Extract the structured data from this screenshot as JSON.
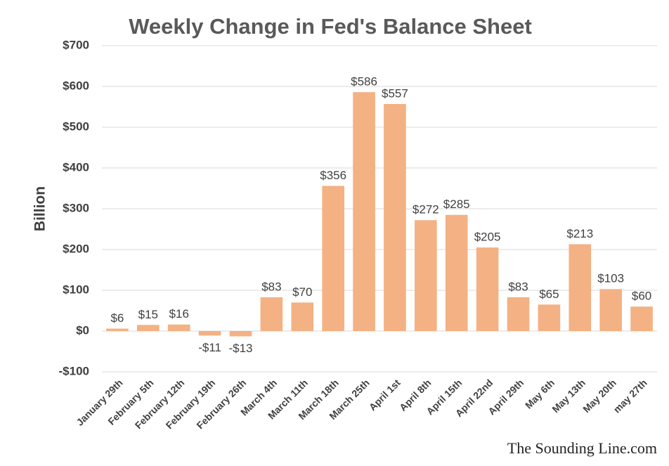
{
  "chart_data": {
    "type": "bar",
    "title": "Weekly Change in Fed's Balance Sheet",
    "y_label": "Billion",
    "annotation": "The Sounding Line.com",
    "categories": [
      "January 29th",
      "February 5th",
      "February 12th",
      "February 19th",
      "February 26th",
      "March 4th",
      "March 11th",
      "March 18th",
      "March 25th",
      "April 1st",
      "April 8th",
      "April 15th",
      "April 22nd",
      "April 29th",
      "May 6th",
      "May 13th",
      "May 20th",
      "may 27th"
    ],
    "values": [
      6,
      15,
      16,
      -11,
      -13,
      83,
      70,
      356,
      586,
      557,
      272,
      285,
      205,
      83,
      65,
      213,
      103,
      60
    ],
    "value_labels": [
      "$6",
      "$15",
      "$16",
      "-$11",
      "-$13",
      "$83",
      "$70",
      "$356",
      "$586",
      "$557",
      "$272",
      "$285",
      "$205",
      "$83",
      "$65",
      "$213",
      "$103",
      "$60"
    ],
    "color": "#f4b183",
    "ylim": [
      -100,
      700
    ],
    "yticks": [
      {
        "value": -100,
        "label": "-$100"
      },
      {
        "value": 0,
        "label": "$0"
      },
      {
        "value": 100,
        "label": "$100"
      },
      {
        "value": 200,
        "label": "$200"
      },
      {
        "value": 300,
        "label": "$300"
      },
      {
        "value": 400,
        "label": "$400"
      },
      {
        "value": 500,
        "label": "$500"
      },
      {
        "value": 600,
        "label": "$600"
      },
      {
        "value": 700,
        "label": "$700"
      }
    ],
    "grid": true
  }
}
